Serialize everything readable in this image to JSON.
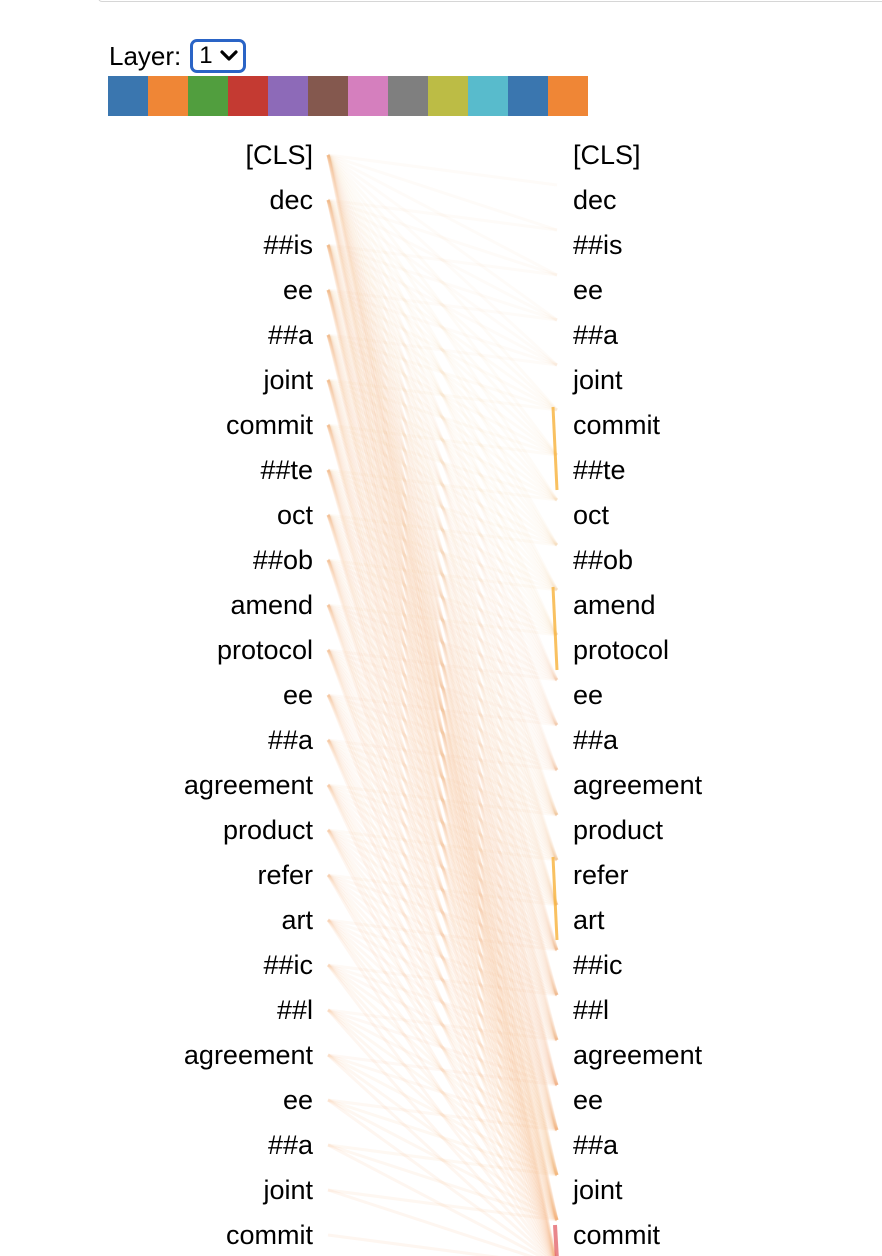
{
  "layer_control": {
    "label": "Layer:",
    "selected": "1"
  },
  "head_colors": [
    "#3a76af",
    "#ef8636",
    "#519e3e",
    "#c43a32",
    "#8d6ab8",
    "#84584e",
    "#d57fbe",
    "#7f7f7f",
    "#bcbc45",
    "#58bbcc",
    "#3a76af",
    "#ef8636"
  ],
  "tokens_left": [
    "[CLS]",
    "dec",
    "##is",
    "ee",
    "##a",
    "joint",
    "commit",
    "##te",
    "oct",
    "##ob",
    "amend",
    "protocol",
    "ee",
    "##a",
    "agreement",
    "product",
    "refer",
    "art",
    "##ic",
    "##l",
    "agreement",
    "ee",
    "##a",
    "joint",
    "commit"
  ],
  "tokens_right": [
    "[CLS]",
    "dec",
    "##is",
    "ee",
    "##a",
    "joint",
    "commit",
    "##te",
    "oct",
    "##ob",
    "amend",
    "protocol",
    "ee",
    "##a",
    "agreement",
    "product",
    "refer",
    "art",
    "##ic",
    "##l",
    "agreement",
    "ee",
    "##a",
    "joint",
    "commit"
  ],
  "attention_colors": {
    "faint": "#f3b076",
    "highlight": "#f7b13a",
    "red_head": "#e0525a"
  }
}
